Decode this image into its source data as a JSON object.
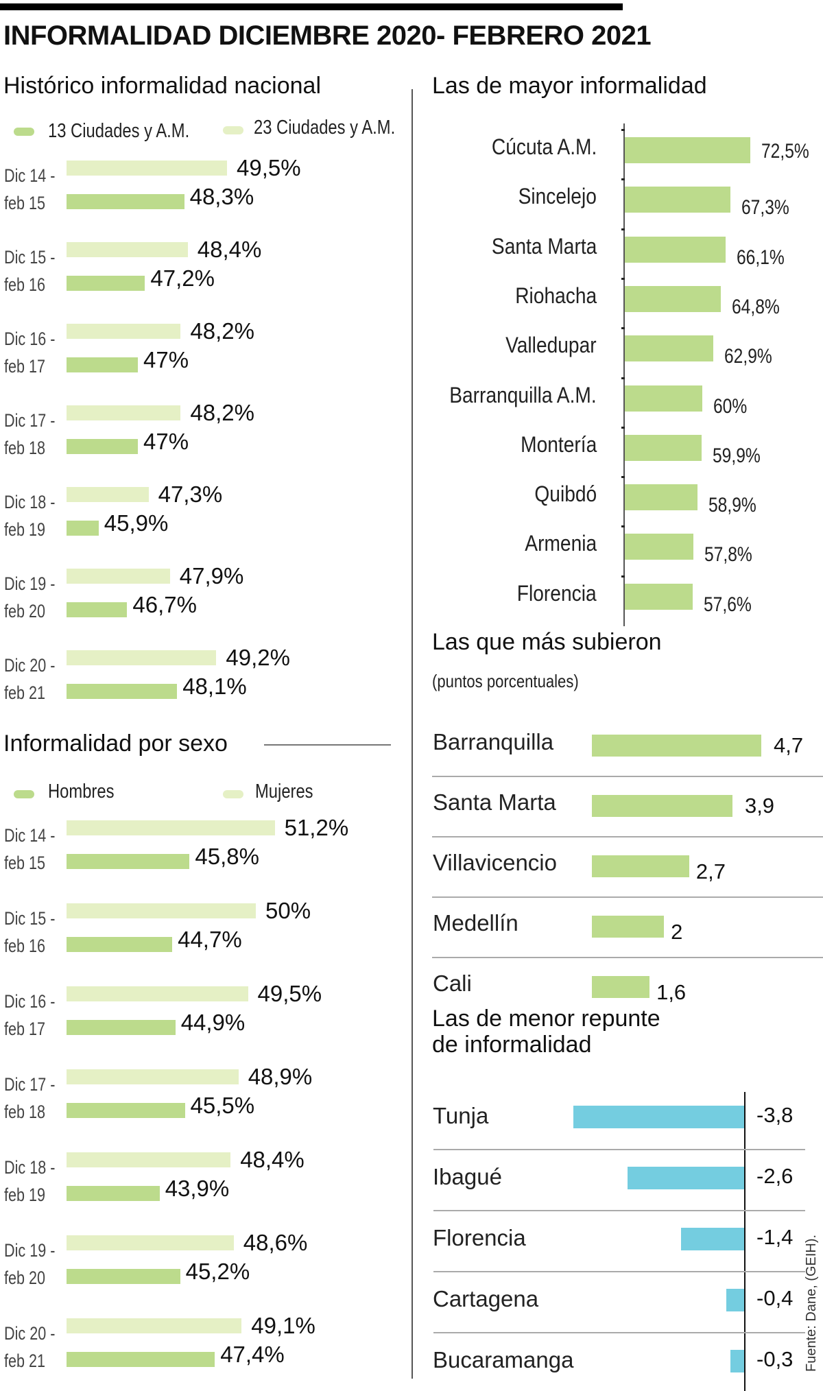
{
  "title": "INFORMALIDAD DICIEMBRE 2020- FEBRERO 2021",
  "source": "Fuente: Dane, (GEIH).",
  "colors": {
    "green_dark": "#bcdb8c",
    "green_light": "#e5f0c5",
    "blue": "#74cde0"
  },
  "chart_data": [
    {
      "id": "historico",
      "type": "bar",
      "orientation": "horizontal",
      "title": "Histórico informalidad nacional",
      "legend": [
        {
          "name": "13 Ciudades y A.M.",
          "color": "#bcdb8c"
        },
        {
          "name": "23  Ciudades y A.M.",
          "color": "#e5f0c5"
        }
      ],
      "categories": [
        [
          "Dic 14 -",
          "feb 15"
        ],
        [
          "Dic 15 -",
          "feb 16"
        ],
        [
          "Dic 16 -",
          "feb 17"
        ],
        [
          "Dic 17 -",
          "feb 18"
        ],
        [
          "Dic 18 -",
          "feb 19"
        ],
        [
          "Dic 19 -",
          "feb 20"
        ],
        [
          "Dic 20 -",
          "feb 21"
        ]
      ],
      "series": [
        {
          "name": "23  Ciudades y A.M.",
          "values": [
            49.5,
            48.4,
            48.2,
            48.2,
            47.3,
            47.9,
            49.2
          ],
          "labels": [
            "49,5%",
            "48,4%",
            "48,2%",
            "48,2%",
            "47,3%",
            "47,9%",
            "49,2%"
          ]
        },
        {
          "name": "13 Ciudades y A.M.",
          "values": [
            48.3,
            47.2,
            47.0,
            47.0,
            45.9,
            46.7,
            48.1
          ],
          "labels": [
            "48,3%",
            "47,2%",
            "47%",
            "47%",
            "45,9%",
            "46,7%",
            "48,1%"
          ]
        }
      ],
      "xlim": [
        45,
        50
      ]
    },
    {
      "id": "sexo",
      "type": "bar",
      "orientation": "horizontal",
      "title": "Informalidad por sexo",
      "legend": [
        {
          "name": "Hombres",
          "color": "#bcdb8c"
        },
        {
          "name": "Mujeres",
          "color": "#e5f0c5"
        }
      ],
      "categories": [
        [
          "Dic 14 -",
          "feb 15"
        ],
        [
          "Dic 15 -",
          "feb 16"
        ],
        [
          "Dic 16 -",
          "feb 17"
        ],
        [
          "Dic 17 -",
          "feb 18"
        ],
        [
          "Dic 18 -",
          "feb 19"
        ],
        [
          "Dic 19 -",
          "feb 20"
        ],
        [
          "Dic 20 -",
          "feb 21"
        ]
      ],
      "series": [
        {
          "name": "Mujeres",
          "values": [
            51.2,
            50.0,
            49.5,
            48.9,
            48.4,
            48.6,
            49.1
          ],
          "labels": [
            "51,2%",
            "50%",
            "49,5%",
            "48,9%",
            "48,4%",
            "48,6%",
            "49,1%"
          ]
        },
        {
          "name": "Hombres",
          "values": [
            45.8,
            44.7,
            44.9,
            45.5,
            43.9,
            45.2,
            47.4
          ],
          "labels": [
            "45,8%",
            "44,7%",
            "44,9%",
            "45,5%",
            "43,9%",
            "45,2%",
            "47,4%"
          ]
        }
      ],
      "xlim": [
        38,
        52
      ]
    },
    {
      "id": "mayor",
      "type": "bar",
      "orientation": "horizontal",
      "title": "Las de mayor informalidad",
      "categories": [
        "Cúcuta A.M.",
        "Sincelejo",
        "Santa Marta",
        "Riohacha",
        "Valledupar",
        "Barranquilla A.M.",
        "Montería",
        "Quibdó",
        "Armenia",
        "Florencia"
      ],
      "values": [
        72.5,
        67.3,
        66.1,
        64.8,
        62.9,
        60.0,
        59.9,
        58.9,
        57.8,
        57.6
      ],
      "labels": [
        "72,5%",
        "67,3%",
        "66,1%",
        "64,8%",
        "62,9%",
        "60%",
        "59,9%",
        "58,9%",
        "57,8%",
        "57,6%"
      ],
      "xlim": [
        40,
        73
      ]
    },
    {
      "id": "subieron",
      "type": "bar",
      "orientation": "horizontal",
      "title": "Las que más subieron",
      "subtitle": "(puntos porcentuales)",
      "categories": [
        "Barranquilla",
        "Santa Marta",
        "Villavicencio",
        "Medellín",
        "Cali"
      ],
      "values": [
        4.7,
        3.9,
        2.7,
        2.0,
        1.6
      ],
      "labels": [
        "4,7",
        "3,9",
        "2,7",
        "2",
        "1,6"
      ],
      "xlim": [
        0,
        4.7
      ]
    },
    {
      "id": "menor",
      "type": "bar",
      "orientation": "horizontal",
      "title": "Las de menor repunte de informalidad",
      "title_lines": [
        "Las de menor repunte",
        "de informalidad"
      ],
      "categories": [
        "Tunja",
        "Ibagué",
        "Florencia",
        "Cartagena",
        "Bucaramanga"
      ],
      "values": [
        -3.8,
        -2.6,
        -1.4,
        -0.4,
        -0.3
      ],
      "labels": [
        "-3,8",
        "-2,6",
        "-1,4",
        "-0,4",
        "-0,3"
      ],
      "xlim": [
        -3.8,
        0
      ]
    }
  ]
}
